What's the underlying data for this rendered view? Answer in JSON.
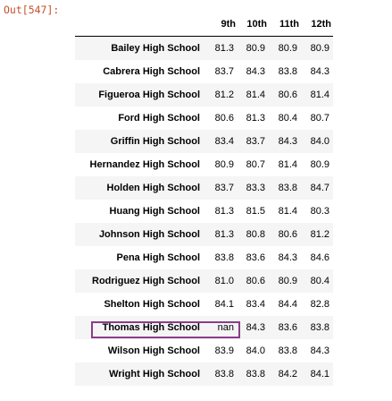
{
  "prompt": "Out[547]:",
  "table": {
    "columns": [
      "9th",
      "10th",
      "11th",
      "12th"
    ],
    "rows": [
      {
        "school": "Bailey High School",
        "values": [
          "81.3",
          "80.9",
          "80.9",
          "80.9"
        ]
      },
      {
        "school": "Cabrera High School",
        "values": [
          "83.7",
          "84.3",
          "83.8",
          "84.3"
        ]
      },
      {
        "school": "Figueroa High School",
        "values": [
          "81.2",
          "81.4",
          "80.6",
          "81.4"
        ]
      },
      {
        "school": "Ford High School",
        "values": [
          "80.6",
          "81.3",
          "80.4",
          "80.7"
        ]
      },
      {
        "school": "Griffin High School",
        "values": [
          "83.4",
          "83.7",
          "84.3",
          "84.0"
        ]
      },
      {
        "school": "Hernandez High School",
        "values": [
          "80.9",
          "80.7",
          "81.4",
          "80.9"
        ]
      },
      {
        "school": "Holden High School",
        "values": [
          "83.7",
          "83.3",
          "83.8",
          "84.7"
        ]
      },
      {
        "school": "Huang High School",
        "values": [
          "81.3",
          "81.5",
          "81.4",
          "80.3"
        ]
      },
      {
        "school": "Johnson High School",
        "values": [
          "81.3",
          "80.8",
          "80.6",
          "81.2"
        ]
      },
      {
        "school": "Pena High School",
        "values": [
          "83.8",
          "83.6",
          "84.3",
          "84.6"
        ]
      },
      {
        "school": "Rodriguez High School",
        "values": [
          "81.0",
          "80.6",
          "80.9",
          "80.4"
        ]
      },
      {
        "school": "Shelton High School",
        "values": [
          "84.1",
          "83.4",
          "84.4",
          "82.8"
        ]
      },
      {
        "school": "Thomas High School",
        "values": [
          "nan",
          "84.3",
          "83.6",
          "83.8"
        ]
      },
      {
        "school": "Wilson High School",
        "values": [
          "83.9",
          "84.0",
          "83.8",
          "84.3"
        ]
      },
      {
        "school": "Wright High School",
        "values": [
          "83.8",
          "83.8",
          "84.2",
          "84.1"
        ]
      }
    ]
  },
  "highlight": {
    "row_school": "Thomas High School",
    "color": "#8a3d8a"
  },
  "colors": {
    "prompt": "#c3502a",
    "row_stripe": "#f5f5f5"
  }
}
